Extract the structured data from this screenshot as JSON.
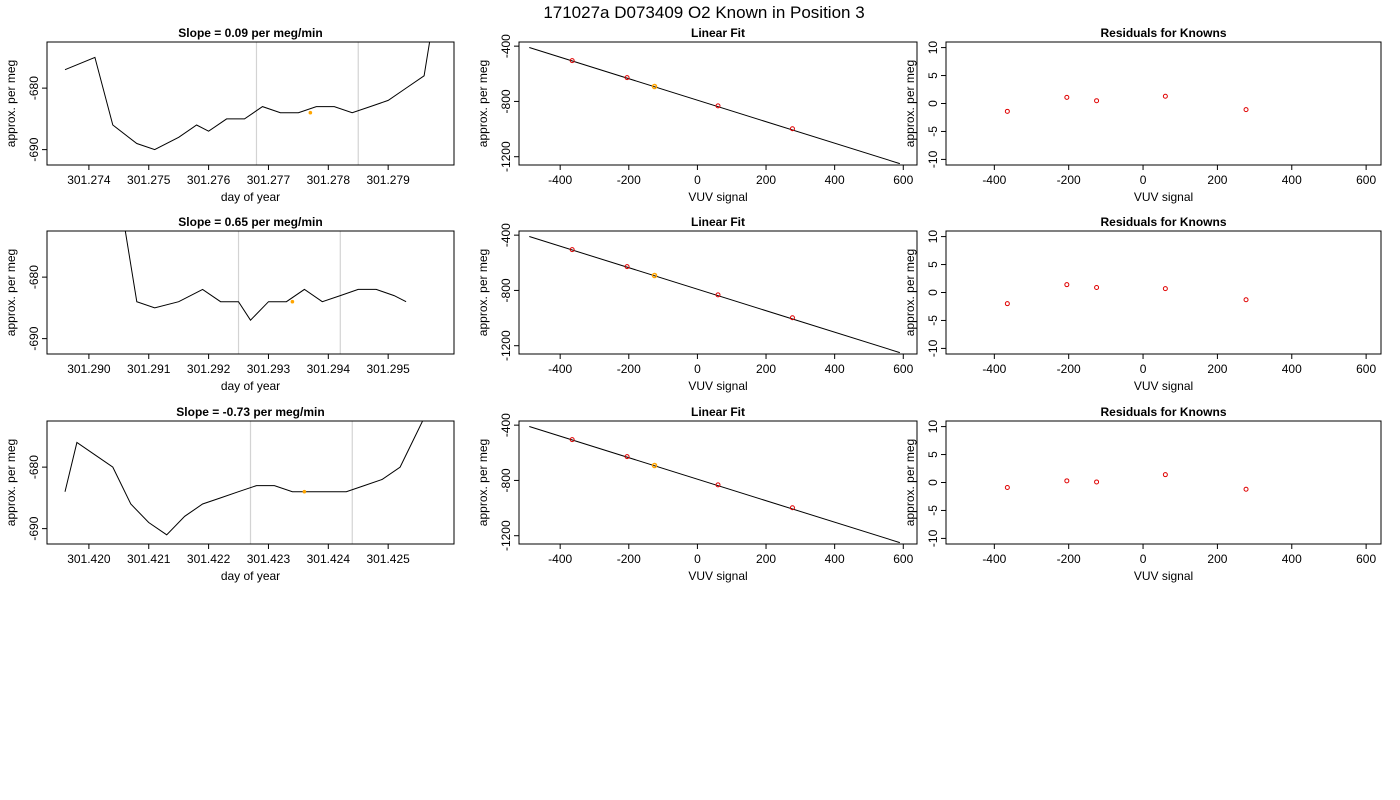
{
  "figure": {
    "title": "171027a      D073409   O2 Known in Position  3"
  },
  "colors": {
    "trace": "#000000",
    "marker_orange": "#ffa500",
    "residual_red": "#e00000",
    "window_line": "#d3d3d3",
    "fit_line": "#000000"
  },
  "chart_data": [
    {
      "type": "line",
      "title": "Slope =  0.09  per meg/min",
      "xlabel": "day of year",
      "ylabel": "approx. per meg",
      "x_ticks": [
        "301.274",
        "301.275",
        "301.276",
        "301.277",
        "301.278",
        "301.279"
      ],
      "y_ticks": [
        "-680",
        "-690"
      ],
      "xlim": [
        301.2733,
        301.2801
      ],
      "ylim": [
        -692.5,
        -672.5
      ],
      "window_lines": [
        301.2768,
        301.2785
      ],
      "marker": {
        "x": 301.2777,
        "y": -684.0
      },
      "series": [
        {
          "x": [
            301.2736,
            301.2741,
            301.2744,
            301.2748,
            301.2751,
            301.2755,
            301.2758,
            301.276,
            301.2763,
            301.2766,
            301.2769,
            301.2772,
            301.2775,
            301.2778,
            301.2781,
            301.2784,
            301.2787,
            301.279,
            301.2793,
            301.2796,
            301.2797
          ],
          "y": [
            -677,
            -675,
            -686,
            -689,
            -690,
            -688,
            -686,
            -687,
            -685,
            -685,
            -683,
            -684,
            -684,
            -683,
            -683,
            -684,
            -683,
            -682,
            -680,
            -678,
            -672
          ]
        }
      ]
    },
    {
      "type": "line",
      "title": "Slope =  0.65  per meg/min",
      "xlabel": "day of year",
      "ylabel": "approx. per meg",
      "x_ticks": [
        "301.290",
        "301.291",
        "301.292",
        "301.293",
        "301.294",
        "301.295"
      ],
      "y_ticks": [
        "-680",
        "-690"
      ],
      "xlim": [
        301.2893,
        301.2961
      ],
      "ylim": [
        -692.5,
        -672.5
      ],
      "window_lines": [
        301.2925,
        301.2942
      ],
      "marker": {
        "x": 301.2934,
        "y": -684.0
      },
      "series": [
        {
          "x": [
            301.2906,
            301.2907,
            301.2908,
            301.2911,
            301.2915,
            301.2919,
            301.2922,
            301.2925,
            301.2927,
            301.293,
            301.2933,
            301.2936,
            301.2939,
            301.2942,
            301.2945,
            301.2948,
            301.2951,
            301.2953
          ],
          "y": [
            -672,
            -678,
            -684,
            -685,
            -684,
            -682,
            -684,
            -684,
            -687,
            -684,
            -684,
            -682,
            -684,
            -683,
            -682,
            -682,
            -683,
            -684
          ]
        }
      ]
    },
    {
      "type": "line",
      "title": "Slope =  -0.73  per meg/min",
      "xlabel": "day of year",
      "ylabel": "approx. per meg",
      "x_ticks": [
        "301.420",
        "301.421",
        "301.422",
        "301.423",
        "301.424",
        "301.425"
      ],
      "y_ticks": [
        "-680",
        "-690"
      ],
      "xlim": [
        301.4193,
        301.4261
      ],
      "ylim": [
        -692.5,
        -672.5
      ],
      "window_lines": [
        301.4227,
        301.4244
      ],
      "marker": {
        "x": 301.4236,
        "y": -684.0
      },
      "series": [
        {
          "x": [
            301.4196,
            301.4198,
            301.4201,
            301.4204,
            301.4207,
            301.421,
            301.4213,
            301.4216,
            301.4219,
            301.4222,
            301.4225,
            301.4228,
            301.4231,
            301.4234,
            301.4237,
            301.424,
            301.4243,
            301.4246,
            301.4249,
            301.4252,
            301.4254,
            301.4256
          ],
          "y": [
            -684,
            -676,
            -678,
            -680,
            -686,
            -689,
            -691,
            -688,
            -686,
            -685,
            -684,
            -683,
            -683,
            -684,
            -684,
            -684,
            -684,
            -683,
            -682,
            -680,
            -676,
            -672
          ]
        }
      ]
    },
    {
      "type": "scatter",
      "title": "Linear Fit",
      "xlabel": "VUV signal",
      "ylabel": "approx. per meg",
      "x_ticks": [
        "-400",
        "-200",
        "0",
        "200",
        "400",
        "600"
      ],
      "y_ticks": [
        "-400",
        "-800",
        "-1200"
      ],
      "xlim": [
        -520,
        640
      ],
      "ylim": [
        -1260,
        -370
      ],
      "fit_line": {
        "x": [
          -490,
          590
        ],
        "y": [
          -410,
          -1250
        ]
      },
      "points": {
        "x": [
          -365,
          -205,
          60,
          277
        ],
        "y": [
          -505,
          -628,
          -832,
          -998
        ]
      },
      "highlight_point": {
        "x": -125,
        "y": -692
      }
    },
    {
      "type": "scatter",
      "title": "Residuals for Knowns",
      "xlabel": "VUV signal",
      "ylabel": "approx. per meg",
      "x_ticks": [
        "-400",
        "-200",
        "0",
        "200",
        "400",
        "600"
      ],
      "y_ticks": [
        "10",
        "5",
        "0",
        "-5",
        "-10"
      ],
      "xlim": [
        -530,
        640
      ],
      "ylim": [
        -11,
        11
      ],
      "points": {
        "x": [
          -365,
          -205,
          -125,
          60,
          277
        ],
        "y": [
          -1.4,
          1.1,
          0.5,
          1.3,
          -1.1
        ]
      }
    },
    {
      "type": "scatter",
      "title": "Linear Fit",
      "xlabel": "VUV signal",
      "ylabel": "approx. per meg",
      "x_ticks": [
        "-400",
        "-200",
        "0",
        "200",
        "400",
        "600"
      ],
      "y_ticks": [
        "-400",
        "-800",
        "-1200"
      ],
      "xlim": [
        -520,
        640
      ],
      "ylim": [
        -1260,
        -370
      ],
      "fit_line": {
        "x": [
          -490,
          590
        ],
        "y": [
          -410,
          -1250
        ]
      },
      "points": {
        "x": [
          -365,
          -205,
          60,
          277
        ],
        "y": [
          -505,
          -628,
          -832,
          -998
        ]
      },
      "highlight_point": {
        "x": -125,
        "y": -692
      }
    },
    {
      "type": "scatter",
      "title": "Residuals for Knowns",
      "xlabel": "VUV signal",
      "ylabel": "approx. per meg",
      "x_ticks": [
        "-400",
        "-200",
        "0",
        "200",
        "400",
        "600"
      ],
      "y_ticks": [
        "10",
        "5",
        "0",
        "-5",
        "-10"
      ],
      "xlim": [
        -530,
        640
      ],
      "ylim": [
        -11,
        11
      ],
      "points": {
        "x": [
          -365,
          -205,
          -125,
          60,
          277
        ],
        "y": [
          -2.0,
          1.4,
          0.9,
          0.7,
          -1.3
        ]
      }
    },
    {
      "type": "scatter",
      "title": "Linear Fit",
      "xlabel": "VUV signal",
      "ylabel": "approx. per meg",
      "x_ticks": [
        "-400",
        "-200",
        "0",
        "200",
        "400",
        "600"
      ],
      "y_ticks": [
        "-400",
        "-800",
        "-1200"
      ],
      "xlim": [
        -520,
        640
      ],
      "ylim": [
        -1260,
        -370
      ],
      "fit_line": {
        "x": [
          -490,
          590
        ],
        "y": [
          -410,
          -1250
        ]
      },
      "points": {
        "x": [
          -365,
          -205,
          60,
          277
        ],
        "y": [
          -505,
          -628,
          -832,
          -998
        ]
      },
      "highlight_point": {
        "x": -125,
        "y": -692
      }
    },
    {
      "type": "scatter",
      "title": "Residuals for Knowns",
      "xlabel": "VUV signal",
      "ylabel": "approx. per meg",
      "x_ticks": [
        "-400",
        "-200",
        "0",
        "200",
        "400",
        "600"
      ],
      "y_ticks": [
        "10",
        "5",
        "0",
        "-5",
        "-10"
      ],
      "xlim": [
        -530,
        640
      ],
      "ylim": [
        -11,
        11
      ],
      "points": {
        "x": [
          -365,
          -205,
          -125,
          60,
          277
        ],
        "y": [
          -0.9,
          0.3,
          0.1,
          1.4,
          -1.2
        ]
      }
    }
  ]
}
